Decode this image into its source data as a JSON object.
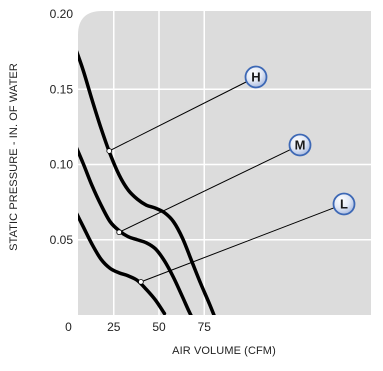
{
  "chart_data": {
    "type": "line",
    "title": "",
    "xlabel": "AIR VOLUME (CFM)",
    "ylabel": "STATIC PRESSURE - IN. OF WATER",
    "xlim": [
      0,
      87
    ],
    "ylim": [
      0,
      0.2
    ],
    "x_ticks": [
      {
        "value": 0,
        "label": "0"
      },
      {
        "value": 25,
        "label": "25"
      },
      {
        "value": 50,
        "label": "50"
      },
      {
        "value": 75,
        "label": "75"
      }
    ],
    "y_ticks": [
      {
        "value": 0.05,
        "label": "0.05"
      },
      {
        "value": 0.1,
        "label": "0.10"
      },
      {
        "value": 0.15,
        "label": "0.15"
      },
      {
        "value": 0.2,
        "label": "0.20"
      }
    ],
    "grid": true,
    "series": [
      {
        "name": "H",
        "x": [
          3,
          8,
          13,
          18,
          23,
          28,
          33,
          38,
          43,
          48,
          53,
          58,
          63,
          68,
          73,
          78,
          83
        ],
        "y": [
          0.18,
          0.163,
          0.143,
          0.124,
          0.107,
          0.093,
          0.083,
          0.077,
          0.073,
          0.071,
          0.068,
          0.062,
          0.051,
          0.036,
          0.021,
          0.007,
          -0.008
        ]
      },
      {
        "name": "M",
        "x": [
          3,
          8,
          13,
          18,
          23,
          28,
          33,
          38,
          43,
          48,
          53,
          58,
          63,
          68,
          73,
          78
        ],
        "y": [
          0.115,
          0.101,
          0.086,
          0.073,
          0.062,
          0.056,
          0.052,
          0.05,
          0.048,
          0.044,
          0.036,
          0.025,
          0.012,
          -0.001,
          -0.01,
          -0.02
        ]
      },
      {
        "name": "L",
        "x": [
          3,
          8,
          13,
          18,
          23,
          28,
          33,
          38,
          43,
          48,
          53
        ],
        "y": [
          0.071,
          0.059,
          0.047,
          0.037,
          0.031,
          0.028,
          0.026,
          0.023,
          0.017,
          0.01,
          0.001
        ]
      }
    ],
    "callouts": [
      {
        "label": "H",
        "point": {
          "x": 22.5,
          "y": 0.109
        },
        "color": "#3d68b5"
      },
      {
        "label": "M",
        "point": {
          "x": 28,
          "y": 0.055
        },
        "color": "#3d68b5"
      },
      {
        "label": "L",
        "point": {
          "x": 40,
          "y": 0.022
        },
        "color": "#3d68b5"
      }
    ],
    "colors": {
      "plot_background": "#dcdcdc",
      "grid": "#ffffff",
      "curve": "#000000",
      "leader": "#000000",
      "marker_fill": "#dfe6f3",
      "marker_edge": "#3d68b5"
    }
  }
}
